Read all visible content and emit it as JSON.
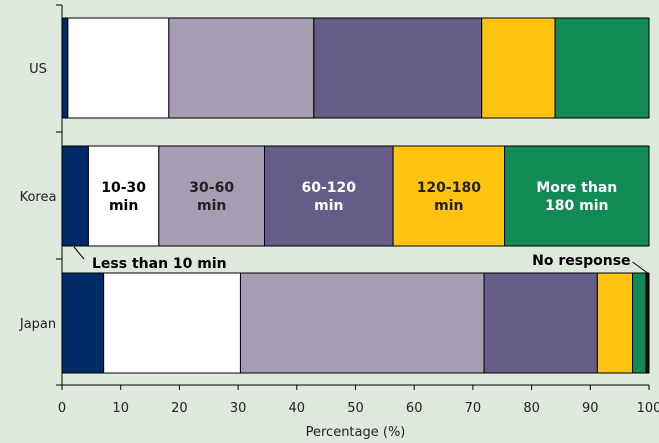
{
  "chart_data": {
    "type": "bar",
    "orientation": "horizontal",
    "stacked": true,
    "categories": [
      "US",
      "Korea",
      "Japan"
    ],
    "series": [
      {
        "name": "Less than 10 min",
        "values": [
          1,
          4.5,
          7.1
        ],
        "color": "#002b66"
      },
      {
        "name": "10-30 min",
        "values": [
          17.2,
          12,
          23.3
        ],
        "color": "#ffffff"
      },
      {
        "name": "30-60 min",
        "values": [
          24.7,
          18,
          41.5
        ],
        "color": "#a69db3"
      },
      {
        "name": "60-120 min",
        "values": [
          28.6,
          21.9,
          19.3
        ],
        "color": "#665c88"
      },
      {
        "name": "120-180 min",
        "values": [
          12.5,
          19,
          6
        ],
        "color": "#ffc20e"
      },
      {
        "name": "More than 180 min",
        "values": [
          16,
          24.6,
          2.3
        ],
        "color": "#128a55"
      },
      {
        "name": "No response",
        "values": [
          0,
          0,
          0.5
        ],
        "color": "#111111"
      }
    ],
    "segment_labels": [
      {
        "series": 1,
        "text": [
          "10-30",
          "min"
        ],
        "color": "#000000"
      },
      {
        "series": 2,
        "text": [
          "30-60",
          "min"
        ],
        "color": "#222222"
      },
      {
        "series": 3,
        "text": [
          "60-120",
          "min"
        ],
        "color": "#ffffff"
      },
      {
        "series": 4,
        "text": [
          "120-180",
          "min"
        ],
        "color": "#222222"
      },
      {
        "series": 5,
        "text": [
          "More than",
          "180 min"
        ],
        "color": "#ffffff"
      }
    ],
    "annotations": {
      "left": "Less than 10 min",
      "right": "No response"
    },
    "xlabel": "Percentage (%)",
    "ylabel": "",
    "xlim": [
      0,
      100
    ],
    "xticks": [
      0,
      10,
      20,
      30,
      40,
      50,
      60,
      70,
      80,
      90,
      100
    ],
    "grid": false
  }
}
